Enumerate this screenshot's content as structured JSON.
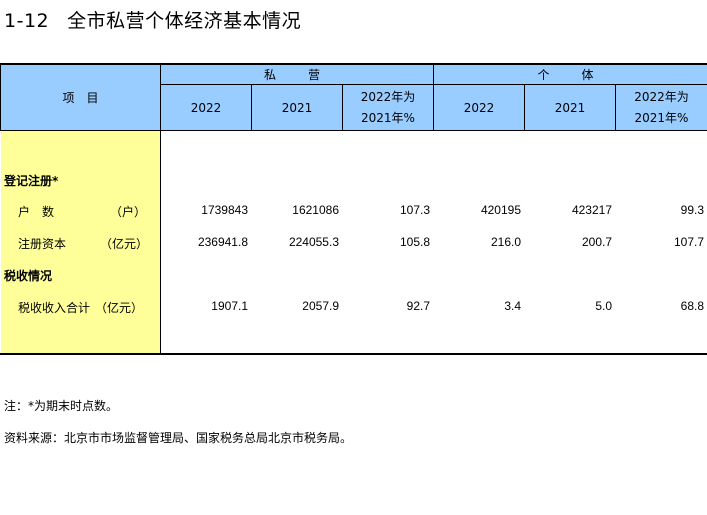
{
  "title": {
    "number": "1-12",
    "text": "全市私营个体经济基本情况"
  },
  "header": {
    "item": "项　目",
    "groups": [
      "私　营",
      "个　体"
    ],
    "columns": [
      {
        "line1": "2022",
        "line2": ""
      },
      {
        "line1": "2021",
        "line2": ""
      },
      {
        "line1": "2022年为",
        "line2": "2021年%"
      },
      {
        "line1": "2022",
        "line2": ""
      },
      {
        "line1": "2021",
        "line2": ""
      },
      {
        "line1": "2022年为",
        "line2": "2021年%"
      }
    ]
  },
  "rows": [
    {
      "label": "登记注册*",
      "unit": "",
      "values": [
        "",
        "",
        "",
        "",
        "",
        ""
      ]
    },
    {
      "label": "户　数",
      "unit": "（户）",
      "values": [
        "1739843",
        "1621086",
        "107.3",
        "420195",
        "423217",
        "99.3"
      ]
    },
    {
      "label": "注册资本",
      "unit": "（亿元）",
      "values": [
        "236941.8",
        "224055.3",
        "105.8",
        "216.0",
        "200.7",
        "107.7"
      ]
    },
    {
      "label": "税收情况",
      "unit": "",
      "values": [
        "",
        "",
        "",
        "",
        "",
        ""
      ]
    },
    {
      "label": "税收收入合计",
      "unit": "（亿元）",
      "values": [
        "1907.1",
        "2057.9",
        "92.7",
        "3.4",
        "5.0",
        "68.8"
      ]
    }
  ],
  "notes": {
    "note": "注：*为期末时点数。",
    "source": "资料来源：北京市市场监督管理局、国家税务总局北京市税务局。"
  },
  "colors": {
    "header_bg": "#99ccff",
    "item_column_bg": "#ffff99"
  }
}
